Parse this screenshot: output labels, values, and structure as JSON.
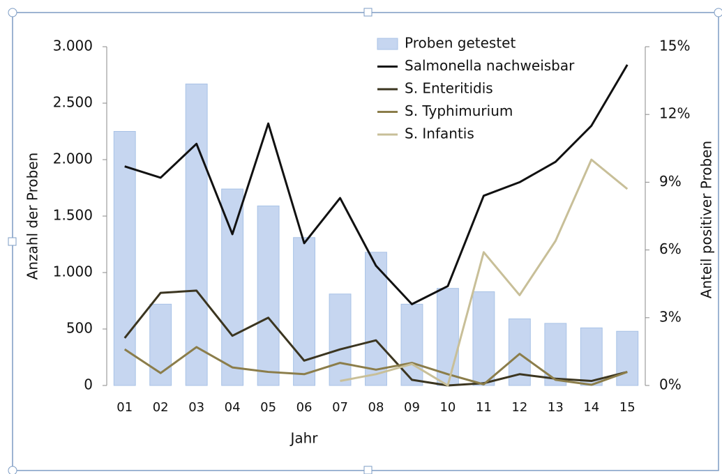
{
  "chart_data": {
    "type": "bar",
    "categories": [
      "01",
      "02",
      "03",
      "04",
      "05",
      "06",
      "07",
      "08",
      "09",
      "10",
      "11",
      "12",
      "13",
      "14",
      "15"
    ],
    "x_label": "Jahr",
    "y_label": "Anzahl der Proben",
    "y2_label": "Anteil positiver Proben",
    "ylim": [
      0,
      3000
    ],
    "yticks": [
      0,
      500,
      {
        "value": 1000,
        "label": "1.000"
      },
      {
        "value": 1500,
        "label": "1.500"
      },
      {
        "value": 2000,
        "label": "2.000"
      },
      {
        "value": 2500,
        "label": "2.500"
      },
      {
        "value": 3000,
        "label": "3.000"
      }
    ],
    "y2lim": [
      0,
      15
    ],
    "y2ticks": [
      {
        "value": 0,
        "label": "0%"
      },
      {
        "value": 3,
        "label": "3%"
      },
      {
        "value": 6,
        "label": "6%"
      },
      {
        "value": 9,
        "label": "9%"
      },
      {
        "value": 12,
        "label": "12%"
      },
      {
        "value": 15,
        "label": "15%"
      }
    ],
    "series": [
      {
        "name": "Proben getestet",
        "type": "bar",
        "color": "#c6d6f0",
        "values": [
          2250,
          720,
          2670,
          1740,
          1590,
          1310,
          810,
          1180,
          720,
          860,
          830,
          590,
          550,
          510,
          480
        ]
      },
      {
        "name": "Salmonella nachweisbar",
        "type": "line",
        "axis": "y2",
        "color": "#111111",
        "values": [
          9.7,
          9.2,
          10.7,
          6.7,
          11.6,
          6.3,
          8.3,
          5.3,
          3.6,
          4.4,
          8.4,
          9.0,
          9.9,
          11.5,
          14.2
        ]
      },
      {
        "name": "S. Enteritidis",
        "type": "line",
        "axis": "y2",
        "color": "#3b3520",
        "values": [
          2.1,
          4.1,
          4.2,
          2.2,
          3.0,
          1.1,
          1.6,
          2.0,
          0.25,
          0,
          0.1,
          0.5,
          0.3,
          0.2,
          0.6
        ]
      },
      {
        "name": "S. Typhimurium",
        "type": "line",
        "axis": "y2",
        "color": "#8b7d4a",
        "values": [
          1.6,
          0.55,
          1.7,
          0.8,
          0.6,
          0.5,
          1.0,
          0.7,
          1.0,
          0.5,
          0.05,
          1.4,
          0.25,
          0.03,
          0.6
        ]
      },
      {
        "name": "S. Infantis",
        "type": "line",
        "axis": "y2",
        "color": "#c8bf98",
        "values": [
          null,
          null,
          null,
          null,
          null,
          null,
          0.2,
          0.5,
          0.95,
          0,
          5.9,
          4.0,
          6.4,
          10.0,
          8.7
        ]
      }
    ]
  }
}
